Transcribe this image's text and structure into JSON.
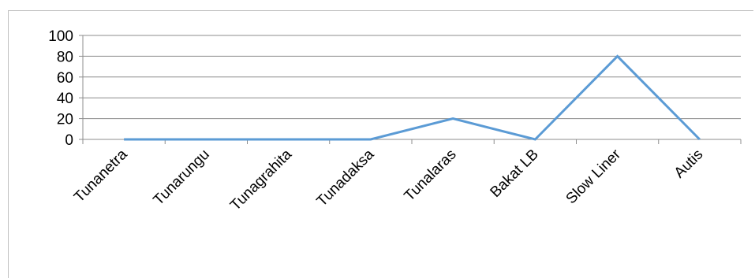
{
  "chart_data": {
    "type": "line",
    "categories": [
      "Tunanetra",
      "Tunarungu",
      "Tunagrahita",
      "Tunadaksa",
      "Tunalaras",
      "Bakat LB",
      "Slow Liner",
      "Autis"
    ],
    "series": [
      {
        "values": [
          0,
          0,
          0,
          0,
          20,
          0,
          80,
          0
        ]
      }
    ],
    "ylim": [
      0,
      100
    ],
    "yticks": [
      0,
      20,
      40,
      60,
      80,
      100
    ],
    "grid": true,
    "legend": "none",
    "colors": {
      "line": "#5b9bd5",
      "grid": "#8c8c8c",
      "axis": "#8c8c8c"
    }
  }
}
